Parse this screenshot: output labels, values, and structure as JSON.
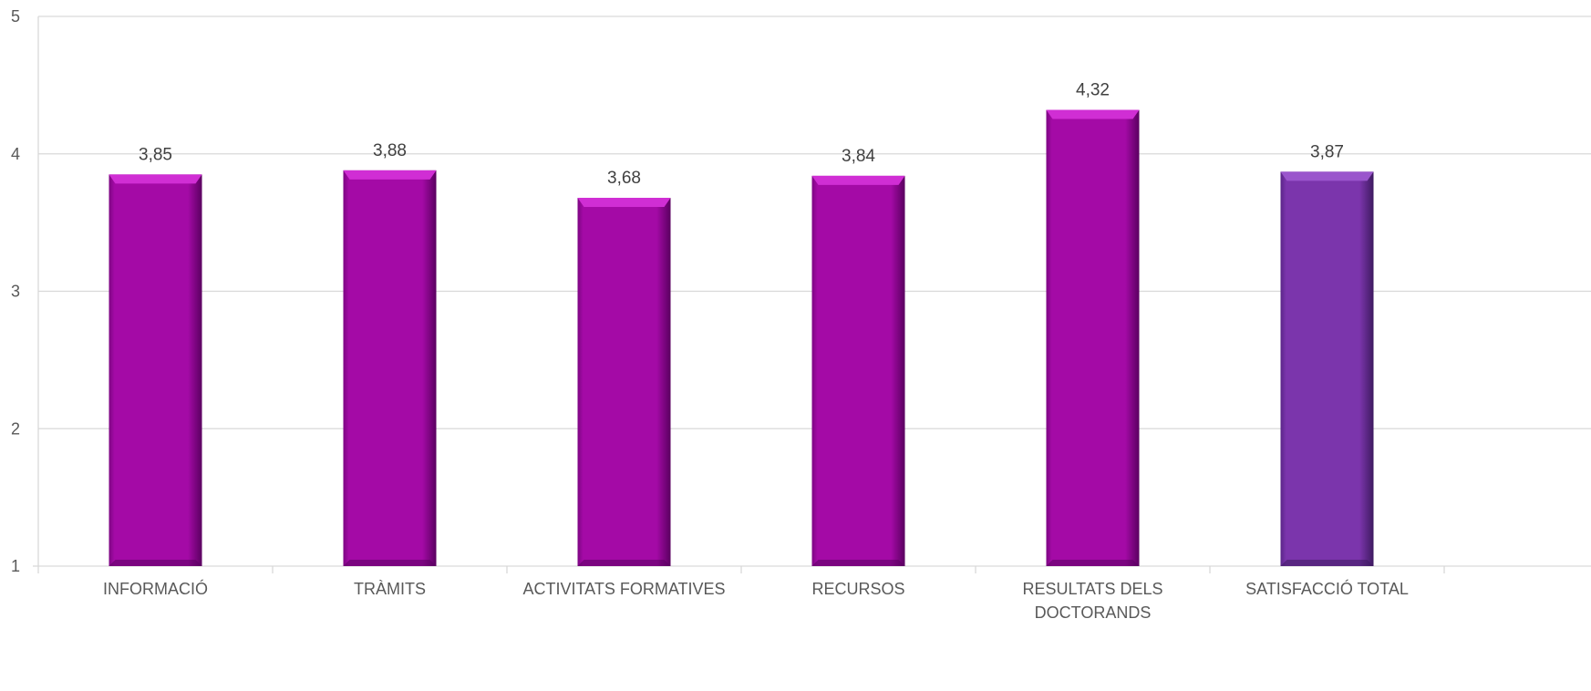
{
  "chart_data": {
    "type": "bar",
    "title": "",
    "xlabel": "",
    "ylabel": "",
    "ylim": [
      1,
      5
    ],
    "yticks": [
      1,
      2,
      3,
      4,
      5
    ],
    "grid": true,
    "legend": "none",
    "categories": [
      [
        "INFORMACIÓ"
      ],
      [
        "TRÀMITS"
      ],
      [
        "ACTIVITATS FORMATIVES"
      ],
      [
        "RECURSOS"
      ],
      [
        "RESULTATS DELS",
        "DOCTORANDS"
      ],
      [
        "SATISFACCIÓ TOTAL"
      ]
    ],
    "values": [
      3.85,
      3.88,
      3.68,
      3.84,
      4.32,
      3.87
    ],
    "value_labels": [
      "3,85",
      "3,88",
      "3,68",
      "3,84",
      "4,32",
      "3,87"
    ],
    "colors": {
      "bar": "#a40aa6",
      "bar_highlight": "#d02ed4",
      "bar_shadow": "#5a0060",
      "total_bar": "#7b35ac",
      "total_highlight": "#9a55cc",
      "total_shadow": "#3e1a60",
      "grid": "#d9d9d9",
      "text": "#595959"
    }
  }
}
